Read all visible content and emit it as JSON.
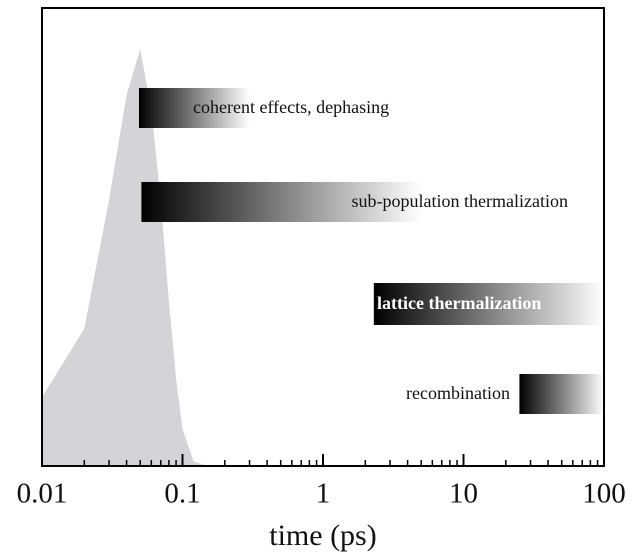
{
  "chart_data": {
    "type": "timeline",
    "xlabel": "time (ps)",
    "xscale": "log",
    "xlim": [
      0.01,
      100
    ],
    "xticks": [
      0.01,
      0.1,
      1,
      10,
      100
    ],
    "xminorticks": [
      0.02,
      0.03,
      0.04,
      0.05,
      0.06,
      0.07,
      0.08,
      0.09,
      0.2,
      0.3,
      0.4,
      0.5,
      0.6,
      0.7,
      0.8,
      0.9,
      2,
      3,
      4,
      5,
      6,
      7,
      8,
      9,
      20,
      30,
      40,
      50,
      60,
      70,
      80,
      90
    ],
    "ylim": [
      0,
      1
    ],
    "pulse": {
      "color": "#d3d3d8",
      "x": [
        0.01,
        0.02,
        0.03,
        0.04,
        0.05,
        0.06,
        0.07,
        0.08,
        0.09,
        0.1,
        0.12,
        0.15
      ],
      "values": [
        0.15,
        0.3,
        0.58,
        0.81,
        0.91,
        0.78,
        0.58,
        0.36,
        0.19,
        0.08,
        0.01,
        0
      ]
    },
    "bars": [
      {
        "name": "coherent effects, dephasing",
        "start": 0.049,
        "end": 0.3
      },
      {
        "name": "sub-population thermalization",
        "start": 0.051,
        "end": 5
      },
      {
        "name": "lattice thermalization",
        "start": 2.3,
        "end": 100
      },
      {
        "name": "recombination",
        "start": 25,
        "end": 100
      }
    ]
  }
}
